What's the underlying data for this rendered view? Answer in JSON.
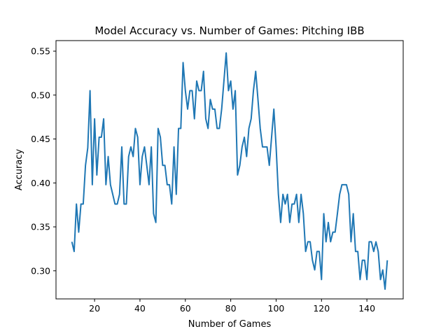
{
  "chart_data": {
    "type": "line",
    "title": "Model Accuracy vs. Number of Games: Pitching IBB",
    "xlabel": "Number of Games",
    "ylabel": "Accuracy",
    "xlim": [
      3,
      156
    ],
    "ylim": [
      0.268,
      0.562
    ],
    "x_ticks": [
      20,
      40,
      60,
      80,
      100,
      120,
      140
    ],
    "y_ticks": [
      0.3,
      0.35,
      0.4,
      0.45,
      0.5,
      0.55
    ],
    "x_tick_labels": [
      "20",
      "40",
      "60",
      "80",
      "100",
      "120",
      "140"
    ],
    "y_tick_labels": [
      "0.30",
      "0.35",
      "0.40",
      "0.45",
      "0.50",
      "0.55"
    ],
    "grid": false,
    "line_color": "#1f77b4",
    "series": [
      {
        "x": [
          10,
          11,
          12,
          13,
          14,
          15,
          16,
          17,
          18,
          19,
          20,
          21,
          22,
          23,
          24,
          25,
          26,
          27,
          28,
          29,
          30,
          31,
          32,
          33,
          34,
          35,
          36,
          37,
          38,
          39,
          40,
          41,
          42,
          43,
          44,
          45,
          46,
          47,
          48,
          49,
          50,
          51,
          52,
          53,
          54,
          55,
          56,
          57,
          58,
          59,
          60,
          61,
          62,
          63,
          64,
          65,
          66,
          67,
          68,
          69,
          70,
          71,
          72,
          73,
          74,
          75,
          76,
          77,
          78,
          79,
          80,
          81,
          82,
          83,
          84,
          85,
          86,
          87,
          88,
          89,
          90,
          91,
          92,
          93,
          94,
          95,
          96,
          97,
          98,
          99,
          100,
          101,
          102,
          103,
          104,
          105,
          106,
          107,
          108,
          109,
          110,
          111,
          112,
          113,
          114,
          115,
          116,
          117,
          118,
          119,
          120,
          121,
          122,
          123,
          124,
          125,
          126,
          127,
          128,
          129,
          130,
          131,
          132,
          133,
          134,
          135,
          136,
          137,
          138,
          139,
          140,
          141,
          142,
          143,
          144,
          145,
          146,
          147,
          148,
          149
        ],
        "y": [
          0.333,
          0.322,
          0.376,
          0.344,
          0.376,
          0.376,
          0.42,
          0.44,
          0.505,
          0.398,
          0.473,
          0.409,
          0.452,
          0.452,
          0.473,
          0.398,
          0.43,
          0.398,
          0.387,
          0.376,
          0.376,
          0.387,
          0.441,
          0.376,
          0.376,
          0.43,
          0.441,
          0.43,
          0.462,
          0.452,
          0.398,
          0.43,
          0.441,
          0.42,
          0.398,
          0.441,
          0.365,
          0.355,
          0.462,
          0.452,
          0.42,
          0.42,
          0.398,
          0.398,
          0.376,
          0.441,
          0.387,
          0.462,
          0.462,
          0.537,
          0.505,
          0.484,
          0.505,
          0.505,
          0.473,
          0.516,
          0.505,
          0.505,
          0.527,
          0.473,
          0.462,
          0.495,
          0.484,
          0.484,
          0.462,
          0.462,
          0.484,
          0.516,
          0.548,
          0.505,
          0.516,
          0.484,
          0.505,
          0.409,
          0.42,
          0.441,
          0.452,
          0.43,
          0.462,
          0.473,
          0.505,
          0.527,
          0.495,
          0.462,
          0.441,
          0.441,
          0.441,
          0.42,
          0.452,
          0.484,
          0.441,
          0.387,
          0.355,
          0.387,
          0.376,
          0.387,
          0.355,
          0.376,
          0.376,
          0.387,
          0.355,
          0.387,
          0.365,
          0.322,
          0.333,
          0.333,
          0.312,
          0.301,
          0.322,
          0.322,
          0.29,
          0.365,
          0.333,
          0.355,
          0.333,
          0.344,
          0.344,
          0.365,
          0.387,
          0.398,
          0.398,
          0.398,
          0.387,
          0.333,
          0.365,
          0.322,
          0.322,
          0.29,
          0.312,
          0.312,
          0.29,
          0.333,
          0.333,
          0.322,
          0.333,
          0.322,
          0.29,
          0.301,
          0.279,
          0.312
        ]
      }
    ]
  }
}
